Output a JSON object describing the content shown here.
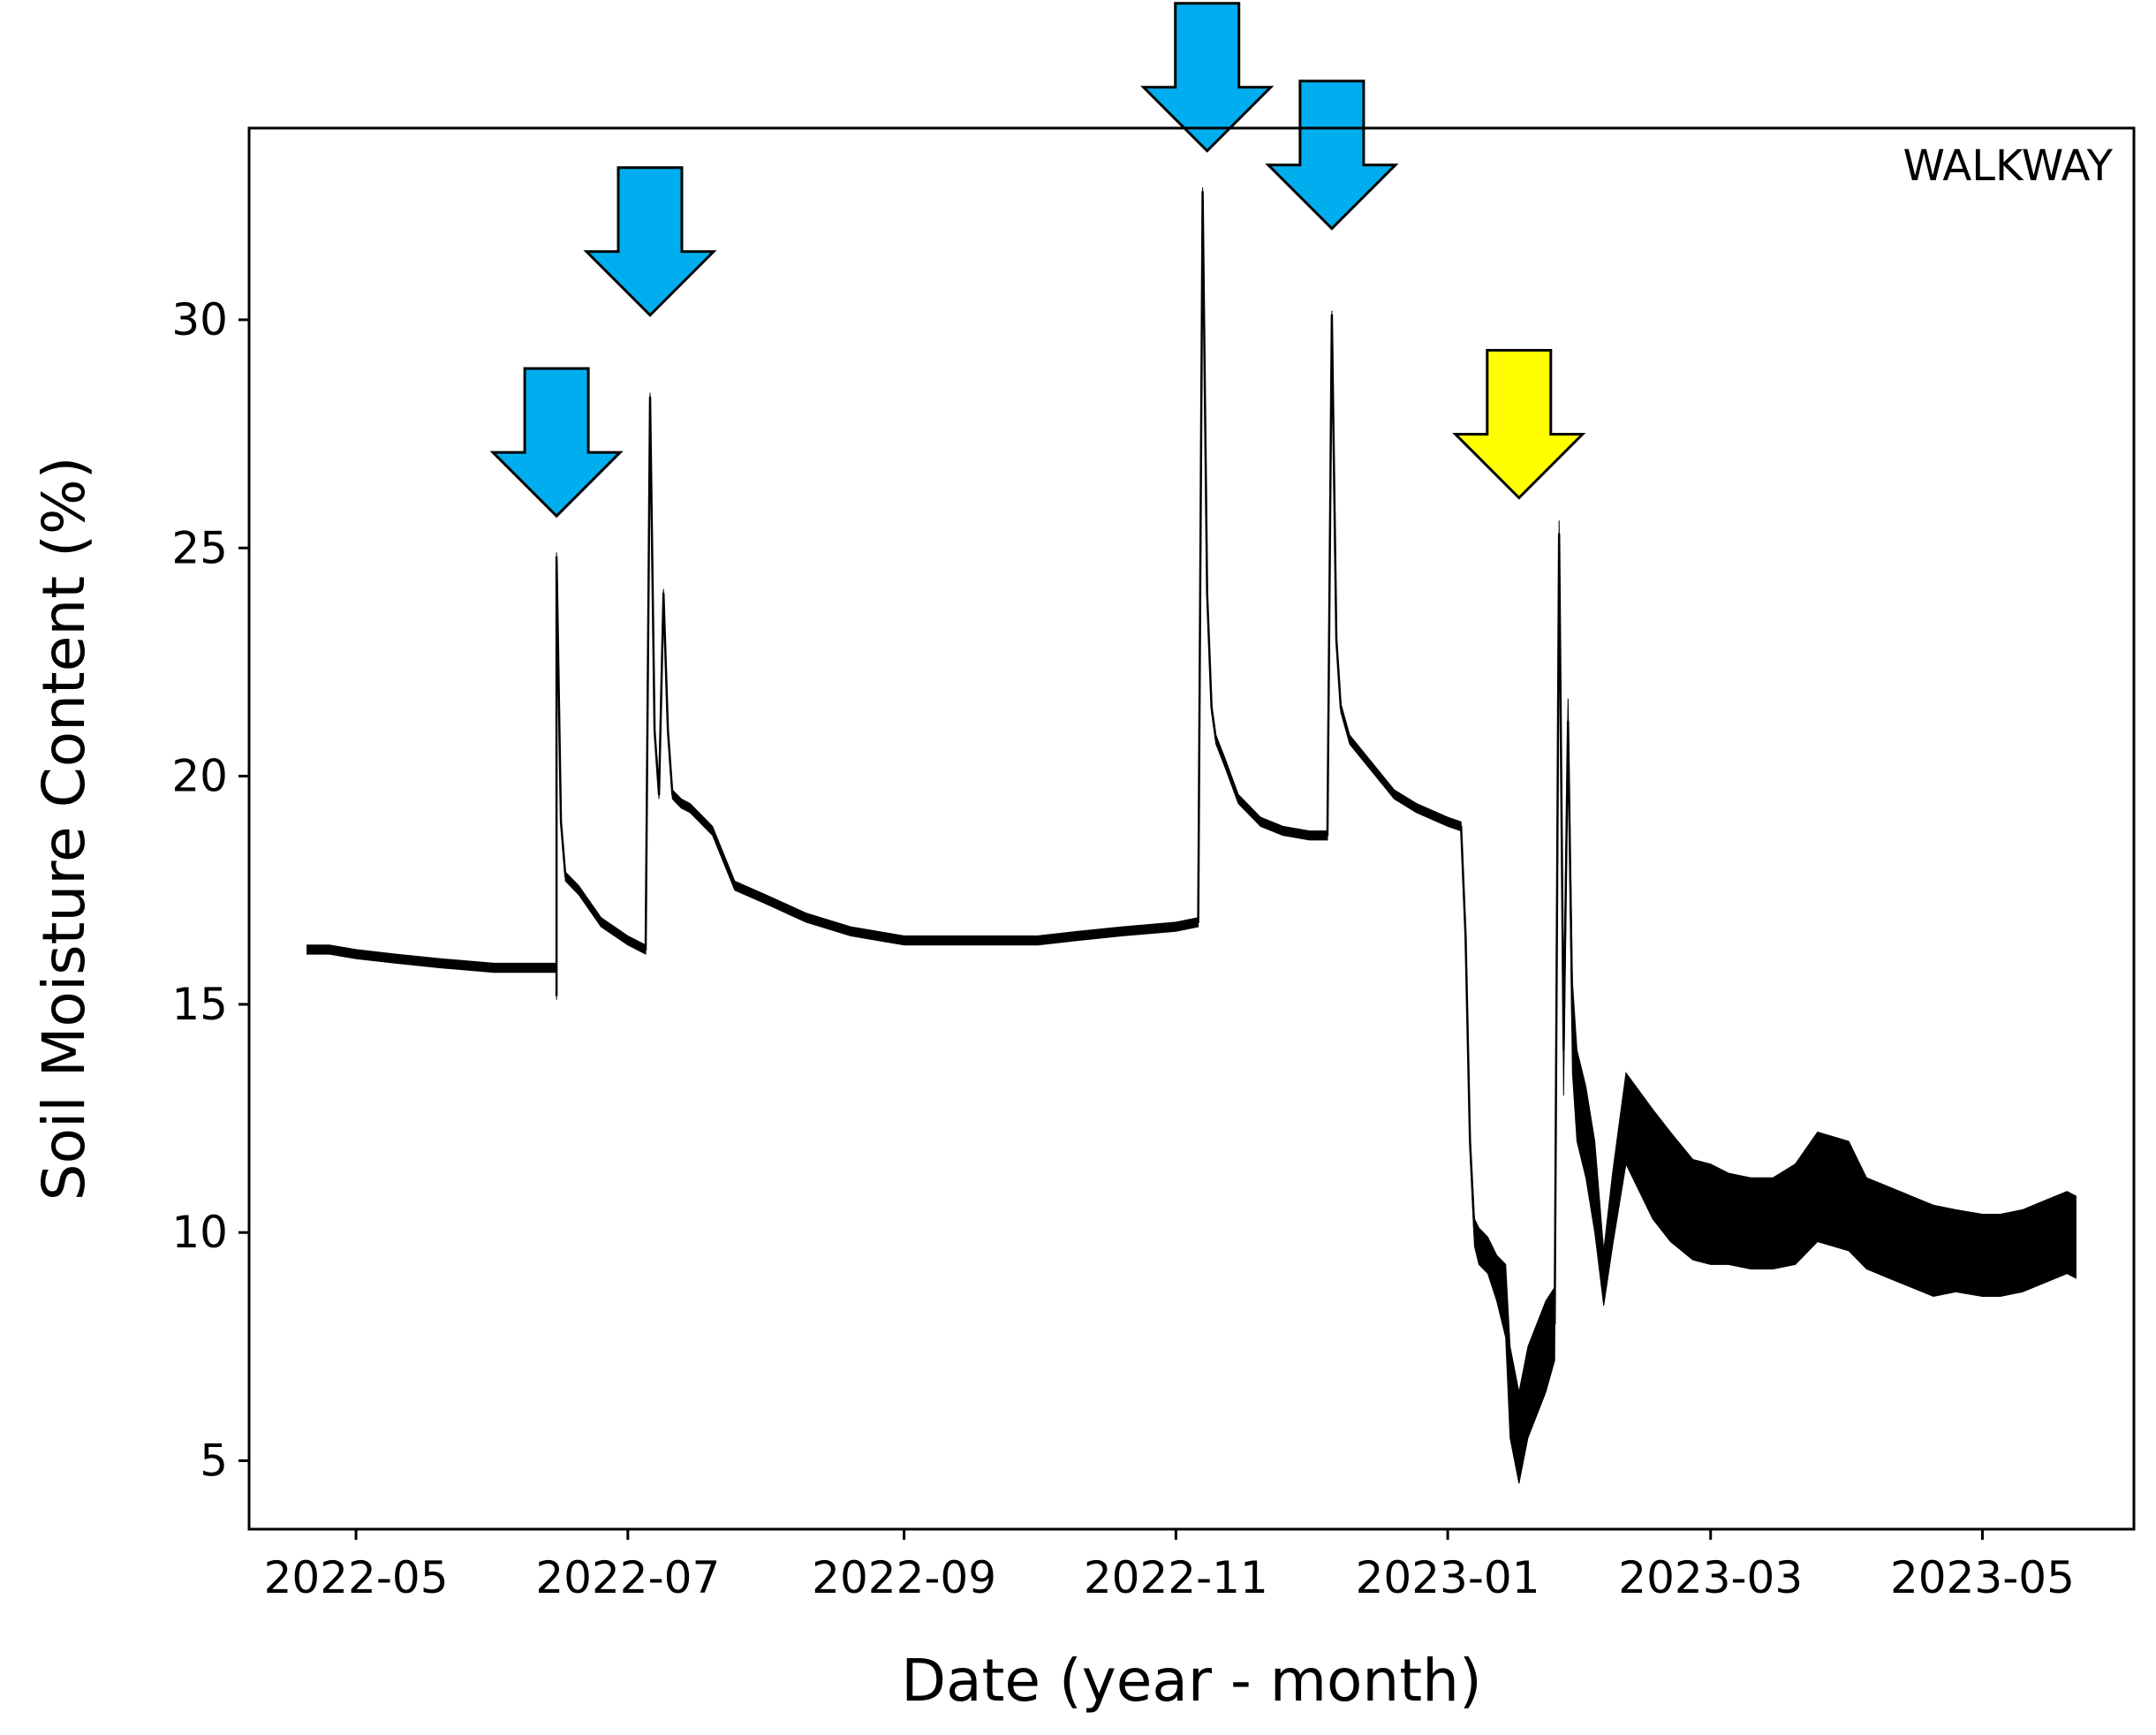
{
  "colors": {
    "line": "#000000",
    "arrow_irrigation": "#00AEEF",
    "arrow_highlight": "#FFFF00",
    "arrow_outline": "#000000"
  },
  "chart_data": {
    "type": "line",
    "title": "",
    "panel_label": "WALKWAY",
    "xlabel": "Date (year - month)",
    "ylabel": "Soil Moisture Content (%)",
    "xlim": [
      "2022-04-07",
      "2023-06-04"
    ],
    "ylim": [
      3.5,
      34.2
    ],
    "grid": false,
    "legend": "none",
    "x_ticks": [
      "2022-05",
      "2022-07",
      "2022-09",
      "2022-11",
      "2023-01",
      "2023-03",
      "2023-05"
    ],
    "x_tick_dates": [
      "2022-05-01",
      "2022-07-01",
      "2022-09-01",
      "2022-11-01",
      "2023-01-01",
      "2023-03-01",
      "2023-05-01"
    ],
    "y_ticks": [
      5,
      10,
      15,
      20,
      25,
      30
    ],
    "series": [
      {
        "x": [
          "2022-04-20",
          "2022-04-25",
          "2022-05-01",
          "2022-05-10",
          "2022-05-20",
          "2022-06-01",
          "2022-06-10",
          "2022-06-15",
          "2022-06-15",
          "2022-06-15",
          "2022-06-16",
          "2022-06-17",
          "2022-06-20",
          "2022-06-25",
          "2022-07-01",
          "2022-07-05",
          "2022-07-06",
          "2022-07-07",
          "2022-07-08",
          "2022-07-09",
          "2022-07-10",
          "2022-07-11",
          "2022-07-13",
          "2022-07-15",
          "2022-07-20",
          "2022-07-25",
          "2022-08-01",
          "2022-08-10",
          "2022-08-20",
          "2022-09-01",
          "2022-09-10",
          "2022-09-20",
          "2022-10-01",
          "2022-10-10",
          "2022-10-20",
          "2022-11-01",
          "2022-11-06",
          "2022-11-07",
          "2022-11-08",
          "2022-11-09",
          "2022-11-10",
          "2022-11-12",
          "2022-11-15",
          "2022-11-20",
          "2022-11-25",
          "2022-12-01",
          "2022-12-05",
          "2022-12-06",
          "2022-12-07",
          "2022-12-08",
          "2022-12-10",
          "2022-12-15",
          "2022-12-20",
          "2022-12-25",
          "2023-01-01",
          "2023-01-04",
          "2023-01-05",
          "2023-01-06",
          "2023-01-07",
          "2023-01-08",
          "2023-01-10",
          "2023-01-12",
          "2023-01-14",
          "2023-01-15",
          "2023-01-17",
          "2023-01-19",
          "2023-01-21",
          "2023-01-23",
          "2023-01-25",
          "2023-01-26",
          "2023-01-27",
          "2023-01-28",
          "2023-01-29",
          "2023-01-30",
          "2023-02-01",
          "2023-02-03",
          "2023-02-05",
          "2023-02-07",
          "2023-02-10",
          "2023-02-13",
          "2023-02-16",
          "2023-02-20",
          "2023-02-25",
          "2023-03-01",
          "2023-03-05",
          "2023-03-10",
          "2023-03-15",
          "2023-03-20",
          "2023-03-25",
          "2023-04-01",
          "2023-04-05",
          "2023-04-10",
          "2023-04-15",
          "2023-04-20",
          "2023-04-25",
          "2023-05-01",
          "2023-05-05",
          "2023-05-10",
          "2023-05-15",
          "2023-05-20",
          "2023-05-22"
        ],
        "y": [
          16.2,
          16.2,
          16.1,
          16.0,
          15.9,
          15.8,
          15.8,
          15.8,
          15.2,
          24.8,
          19.0,
          17.8,
          17.5,
          16.8,
          16.4,
          16.2,
          28.3,
          21.0,
          19.6,
          24.0,
          21.0,
          19.6,
          19.4,
          19.3,
          18.8,
          17.6,
          17.3,
          16.9,
          16.6,
          16.4,
          16.4,
          16.4,
          16.4,
          16.5,
          16.6,
          16.7,
          16.8,
          32.8,
          24.0,
          21.5,
          20.8,
          20.3,
          19.5,
          19.0,
          18.8,
          18.7,
          18.7,
          30.1,
          23.0,
          21.5,
          20.8,
          20.2,
          19.6,
          19.3,
          19.0,
          18.9,
          16.5,
          12.0,
          10.0,
          9.7,
          9.5,
          9.0,
          8.5,
          6.5,
          5.5,
          6.5,
          7.0,
          7.5,
          8.0,
          25.3,
          14.0,
          21.2,
          14.5,
          13.0,
          12.2,
          11.0,
          9.0,
          10.5,
          12.5,
          12.0,
          11.5,
          11.0,
          10.5,
          10.4,
          10.3,
          10.2,
          10.2,
          10.4,
          11.0,
          10.8,
          10.2,
          10.0,
          9.8,
          9.6,
          9.6,
          9.5,
          9.5,
          9.6,
          9.8,
          10.0,
          9.9
        ],
        "band": [
          0.1,
          0.1,
          0.1,
          0.1,
          0.1,
          0.1,
          0.1,
          0.1,
          0.1,
          0.1,
          0.1,
          0.1,
          0.1,
          0.1,
          0.1,
          0.1,
          0.1,
          0.1,
          0.1,
          0.1,
          0.1,
          0.1,
          0.1,
          0.1,
          0.1,
          0.1,
          0.1,
          0.1,
          0.1,
          0.1,
          0.1,
          0.1,
          0.1,
          0.1,
          0.1,
          0.1,
          0.1,
          0.1,
          0.1,
          0.1,
          0.1,
          0.1,
          0.1,
          0.1,
          0.1,
          0.1,
          0.1,
          0.1,
          0.1,
          0.1,
          0.1,
          0.1,
          0.1,
          0.1,
          0.1,
          0.1,
          0.1,
          0.2,
          0.3,
          0.4,
          0.4,
          0.5,
          0.8,
          1.0,
          1.0,
          1.0,
          1.0,
          1.0,
          0.8,
          0.3,
          1.0,
          0.5,
          1.0,
          1.0,
          1.0,
          1.0,
          0.6,
          0.8,
          1.0,
          1.1,
          1.2,
          1.2,
          1.1,
          1.1,
          1.0,
          1.0,
          1.0,
          1.1,
          1.2,
          1.2,
          1.0,
          1.0,
          1.0,
          1.0,
          0.9,
          0.9,
          0.9,
          0.9,
          0.9,
          0.9,
          0.9
        ]
      }
    ],
    "annotations": [
      {
        "type": "arrow",
        "color": "arrow_irrigation",
        "date": "2022-06-15",
        "tip_y": 25.7
      },
      {
        "type": "arrow",
        "color": "arrow_irrigation",
        "date": "2022-07-06",
        "tip_y": 30.1
      },
      {
        "type": "arrow",
        "color": "arrow_irrigation",
        "date": "2022-11-08",
        "tip_y": 33.7
      },
      {
        "type": "arrow",
        "color": "arrow_irrigation",
        "date": "2022-12-06",
        "tip_y": 32.0
      },
      {
        "type": "arrow",
        "color": "arrow_highlight",
        "date": "2023-01-17",
        "tip_y": 26.1
      }
    ]
  }
}
